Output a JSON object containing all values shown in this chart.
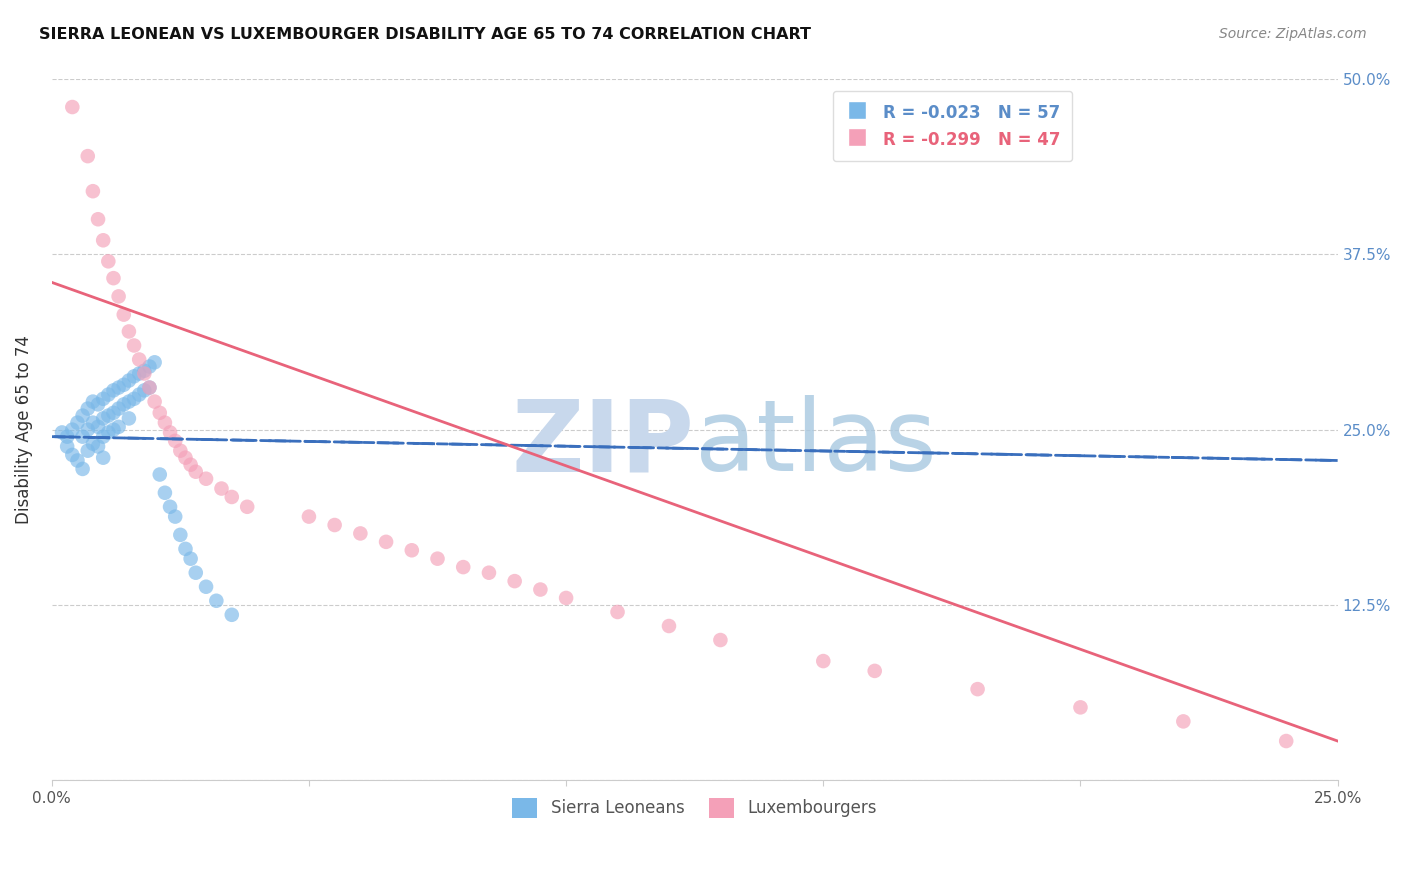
{
  "title": "SIERRA LEONEAN VS LUXEMBOURGER DISABILITY AGE 65 TO 74 CORRELATION CHART",
  "source": "Source: ZipAtlas.com",
  "ylabel": "Disability Age 65 to 74",
  "xlim": [
    0.0,
    0.25
  ],
  "ylim": [
    0.0,
    0.5
  ],
  "x_ticks": [
    0.0,
    0.05,
    0.1,
    0.15,
    0.2,
    0.25
  ],
  "x_tick_labels": [
    "0.0%",
    "",
    "",
    "",
    "",
    "25.0%"
  ],
  "y_ticks": [
    0.0,
    0.125,
    0.25,
    0.375,
    0.5
  ],
  "y_tick_labels": [
    "",
    "12.5%",
    "25.0%",
    "37.5%",
    "50.0%"
  ],
  "sierra_leone_R": -0.023,
  "sierra_leone_N": 57,
  "luxembourger_R": -0.299,
  "luxembourger_N": 47,
  "color_blue": "#7ab8e8",
  "color_pink": "#f4a0b8",
  "color_blue_line": "#3a6fbd",
  "color_pink_line": "#e8637a",
  "color_blue_text": "#5b8dc8",
  "color_right_axis": "#5b8dc8",
  "watermark_zip_color": "#c8d8ec",
  "watermark_atlas_color": "#a8c8e0",
  "sl_trend_x0": 0.0,
  "sl_trend_y0": 0.245,
  "sl_trend_x1": 0.25,
  "sl_trend_y1": 0.228,
  "lx_trend_x0": 0.0,
  "lx_trend_y0": 0.355,
  "lx_trend_x1": 0.25,
  "lx_trend_y1": 0.028,
  "sierra_leone_x": [
    0.002,
    0.003,
    0.003,
    0.004,
    0.004,
    0.005,
    0.005,
    0.006,
    0.006,
    0.006,
    0.007,
    0.007,
    0.007,
    0.008,
    0.008,
    0.008,
    0.009,
    0.009,
    0.009,
    0.01,
    0.01,
    0.01,
    0.01,
    0.011,
    0.011,
    0.011,
    0.012,
    0.012,
    0.012,
    0.013,
    0.013,
    0.013,
    0.014,
    0.014,
    0.015,
    0.015,
    0.015,
    0.016,
    0.016,
    0.017,
    0.017,
    0.018,
    0.018,
    0.019,
    0.019,
    0.02,
    0.021,
    0.022,
    0.023,
    0.024,
    0.025,
    0.026,
    0.027,
    0.028,
    0.03,
    0.032,
    0.035
  ],
  "sierra_leone_y": [
    0.248,
    0.245,
    0.238,
    0.25,
    0.232,
    0.255,
    0.228,
    0.26,
    0.245,
    0.222,
    0.265,
    0.25,
    0.235,
    0.27,
    0.255,
    0.24,
    0.268,
    0.252,
    0.238,
    0.272,
    0.258,
    0.245,
    0.23,
    0.275,
    0.26,
    0.248,
    0.278,
    0.262,
    0.25,
    0.28,
    0.265,
    0.252,
    0.282,
    0.268,
    0.285,
    0.27,
    0.258,
    0.288,
    0.272,
    0.29,
    0.275,
    0.292,
    0.278,
    0.295,
    0.28,
    0.298,
    0.218,
    0.205,
    0.195,
    0.188,
    0.175,
    0.165,
    0.158,
    0.148,
    0.138,
    0.128,
    0.118
  ],
  "luxembourger_x": [
    0.004,
    0.007,
    0.008,
    0.009,
    0.01,
    0.011,
    0.012,
    0.013,
    0.014,
    0.015,
    0.016,
    0.017,
    0.018,
    0.019,
    0.02,
    0.021,
    0.022,
    0.023,
    0.024,
    0.025,
    0.026,
    0.027,
    0.028,
    0.03,
    0.033,
    0.035,
    0.038,
    0.05,
    0.055,
    0.06,
    0.065,
    0.07,
    0.075,
    0.08,
    0.085,
    0.09,
    0.095,
    0.1,
    0.11,
    0.12,
    0.13,
    0.15,
    0.16,
    0.18,
    0.2,
    0.22,
    0.24
  ],
  "luxembourger_y": [
    0.48,
    0.445,
    0.42,
    0.4,
    0.385,
    0.37,
    0.358,
    0.345,
    0.332,
    0.32,
    0.31,
    0.3,
    0.29,
    0.28,
    0.27,
    0.262,
    0.255,
    0.248,
    0.242,
    0.235,
    0.23,
    0.225,
    0.22,
    0.215,
    0.208,
    0.202,
    0.195,
    0.188,
    0.182,
    0.176,
    0.17,
    0.164,
    0.158,
    0.152,
    0.148,
    0.142,
    0.136,
    0.13,
    0.12,
    0.11,
    0.1,
    0.085,
    0.078,
    0.065,
    0.052,
    0.042,
    0.028
  ]
}
